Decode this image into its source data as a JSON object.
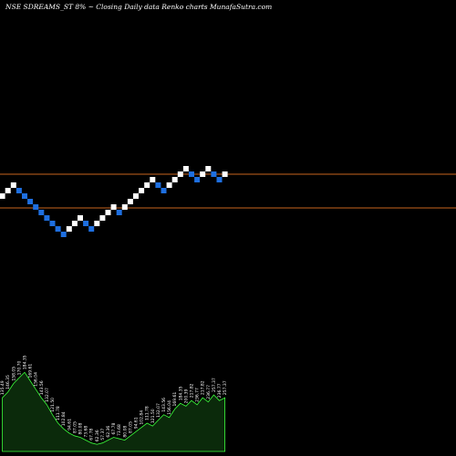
{
  "title": "NSE SDREAMS_ST 8% ~  Closing Daily data  Renko  charts MunafaSutra.com",
  "colors": {
    "background": "#000000",
    "up_brick": "#ffffff",
    "down_brick": "#1e6fe0",
    "level_line": "#c8641e",
    "volume_fill": "#0b2a0b",
    "volume_stroke": "#3cff3c"
  },
  "chart_data": {
    "type": "renko",
    "title": "NSE SDREAMS_ST 8% ~  Closing Daily data  Renko  charts MunafaSutra.com",
    "brick_size_pct": 8,
    "levels": [
      {
        "label": "",
        "value": 126.0
      },
      {
        "label": "",
        "value": 106.0
      }
    ],
    "bricks": [
      {
        "x": 1,
        "level": 12,
        "dir": "up"
      },
      {
        "x": 2,
        "level": 13,
        "dir": "up"
      },
      {
        "x": 3,
        "level": 14,
        "dir": "up"
      },
      {
        "x": 4,
        "level": 13,
        "dir": "down"
      },
      {
        "x": 5,
        "level": 12,
        "dir": "down"
      },
      {
        "x": 6,
        "level": 11,
        "dir": "down"
      },
      {
        "x": 7,
        "level": 10,
        "dir": "down"
      },
      {
        "x": 8,
        "level": 9,
        "dir": "down"
      },
      {
        "x": 9,
        "level": 8,
        "dir": "down"
      },
      {
        "x": 10,
        "level": 7,
        "dir": "down"
      },
      {
        "x": 11,
        "level": 6,
        "dir": "down"
      },
      {
        "x": 12,
        "level": 5,
        "dir": "down"
      },
      {
        "x": 13,
        "level": 6,
        "dir": "up"
      },
      {
        "x": 14,
        "level": 7,
        "dir": "up"
      },
      {
        "x": 15,
        "level": 8,
        "dir": "up"
      },
      {
        "x": 16,
        "level": 7,
        "dir": "down"
      },
      {
        "x": 17,
        "level": 6,
        "dir": "down"
      },
      {
        "x": 18,
        "level": 7,
        "dir": "up"
      },
      {
        "x": 19,
        "level": 8,
        "dir": "up"
      },
      {
        "x": 20,
        "level": 9,
        "dir": "up"
      },
      {
        "x": 21,
        "level": 10,
        "dir": "up"
      },
      {
        "x": 22,
        "level": 9,
        "dir": "down"
      },
      {
        "x": 23,
        "level": 10,
        "dir": "up"
      },
      {
        "x": 24,
        "level": 11,
        "dir": "up"
      },
      {
        "x": 25,
        "level": 12,
        "dir": "up"
      },
      {
        "x": 26,
        "level": 13,
        "dir": "up"
      },
      {
        "x": 27,
        "level": 14,
        "dir": "up"
      },
      {
        "x": 28,
        "level": 15,
        "dir": "up"
      },
      {
        "x": 29,
        "level": 14,
        "dir": "down"
      },
      {
        "x": 30,
        "level": 13,
        "dir": "down"
      },
      {
        "x": 31,
        "level": 14,
        "dir": "up"
      },
      {
        "x": 32,
        "level": 15,
        "dir": "up"
      },
      {
        "x": 33,
        "level": 16,
        "dir": "up"
      },
      {
        "x": 34,
        "level": 17,
        "dir": "up"
      },
      {
        "x": 35,
        "level": 16,
        "dir": "down"
      },
      {
        "x": 36,
        "level": 15,
        "dir": "down"
      },
      {
        "x": 37,
        "level": 16,
        "dir": "up"
      },
      {
        "x": 38,
        "level": 17,
        "dir": "up"
      },
      {
        "x": 39,
        "level": 16,
        "dir": "down"
      },
      {
        "x": 40,
        "level": 15,
        "dir": "down"
      },
      {
        "x": 41,
        "level": 16,
        "dir": "up"
      }
    ],
    "volume": [
      {
        "x": 1,
        "value": 38,
        "label": "135.49"
      },
      {
        "x": 2,
        "value": 42,
        "label": "146.35"
      },
      {
        "x": 3,
        "value": 48,
        "label": "158.05"
      },
      {
        "x": 4,
        "value": 52,
        "label": "170.70"
      },
      {
        "x": 5,
        "value": 56,
        "label": "184.35"
      },
      {
        "x": 6,
        "value": 50,
        "label": "169.61"
      },
      {
        "x": 7,
        "value": 44,
        "label": "156.04"
      },
      {
        "x": 8,
        "value": 38,
        "label": "143.56"
      },
      {
        "x": 9,
        "value": 33,
        "label": "132.07"
      },
      {
        "x": 10,
        "value": 26,
        "label": "121.50"
      },
      {
        "x": 11,
        "value": 20,
        "label": "111.78"
      },
      {
        "x": 12,
        "value": 16,
        "label": "102.84"
      },
      {
        "x": 13,
        "value": 13,
        "label": "94.61"
      },
      {
        "x": 14,
        "value": 11,
        "label": "87.05"
      },
      {
        "x": 15,
        "value": 10,
        "label": "80.08"
      },
      {
        "x": 16,
        "value": 8,
        "label": "73.68"
      },
      {
        "x": 17,
        "value": 6,
        "label": "67.78"
      },
      {
        "x": 18,
        "value": 5,
        "label": "62.36"
      },
      {
        "x": 19,
        "value": 6,
        "label": "57.37"
      },
      {
        "x": 20,
        "value": 8,
        "label": "62.36"
      },
      {
        "x": 21,
        "value": 10,
        "label": "67.78"
      },
      {
        "x": 22,
        "value": 9,
        "label": "73.68"
      },
      {
        "x": 23,
        "value": 8,
        "label": "80.08"
      },
      {
        "x": 24,
        "value": 11,
        "label": "87.05"
      },
      {
        "x": 25,
        "value": 14,
        "label": "94.61"
      },
      {
        "x": 26,
        "value": 17,
        "label": "102.84"
      },
      {
        "x": 27,
        "value": 20,
        "label": "111.78"
      },
      {
        "x": 28,
        "value": 18,
        "label": "121.50"
      },
      {
        "x": 29,
        "value": 22,
        "label": "132.07"
      },
      {
        "x": 30,
        "value": 26,
        "label": "143.56"
      },
      {
        "x": 31,
        "value": 24,
        "label": "156.04"
      },
      {
        "x": 32,
        "value": 30,
        "label": "169.61"
      },
      {
        "x": 33,
        "value": 34,
        "label": "184.35"
      },
      {
        "x": 34,
        "value": 32,
        "label": "200.39"
      },
      {
        "x": 35,
        "value": 36,
        "label": "217.82"
      },
      {
        "x": 36,
        "value": 33,
        "label": "236.77"
      },
      {
        "x": 37,
        "value": 38,
        "label": "217.82"
      },
      {
        "x": 38,
        "value": 35,
        "label": "236.77"
      },
      {
        "x": 39,
        "value": 40,
        "label": "257.37"
      },
      {
        "x": 40,
        "value": 36,
        "label": "236.77"
      },
      {
        "x": 41,
        "value": 38,
        "label": "257.37"
      }
    ],
    "grid": false,
    "legend": "none"
  }
}
